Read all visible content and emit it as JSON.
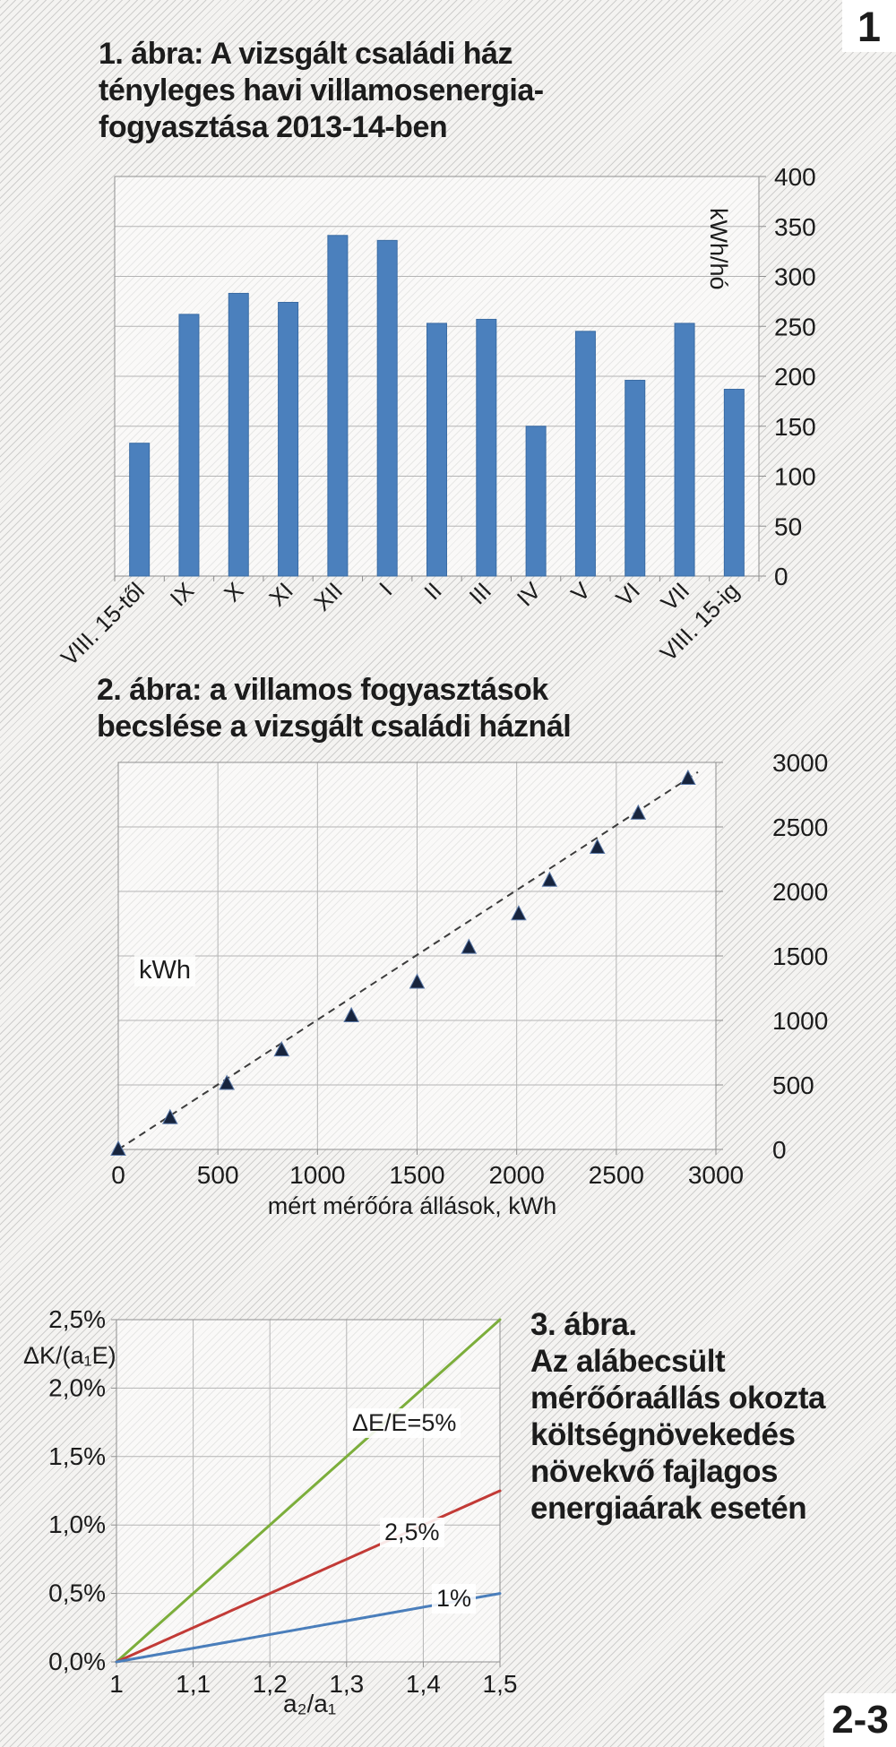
{
  "page": {
    "top_badge": "1",
    "bottom_badge": "2-3"
  },
  "chart_data": [
    {
      "type": "bar",
      "title": "1. ábra: A vizsgált családi ház tényleges havi villamosenergia-fogyasztása 2013-14-ben",
      "title_lines": [
        "1. ábra: A vizsgált családi ház",
        "tényleges havi villamosenergia-",
        "fogyasztása 2013-14-ben"
      ],
      "ylabel": "kWh/hó",
      "categories": [
        "VIII. 15-től",
        "IX",
        "X",
        "XI",
        "XII",
        "I",
        "II",
        "III",
        "IV",
        "V",
        "VI",
        "VII",
        "VIII. 15-ig"
      ],
      "values": [
        133,
        262,
        283,
        274,
        341,
        336,
        253,
        257,
        150,
        245,
        196,
        253,
        187
      ],
      "ylim": [
        0,
        400
      ],
      "ytick_step": 50,
      "bar_color": "#4b80bd",
      "axis_side": "right",
      "grid": "horizontal"
    },
    {
      "type": "scatter",
      "title": "2. ábra: a villamos fogyasztások becslése a vizsgált családi háznál",
      "title_lines": [
        "2. ábra: a villamos fogyasztások",
        "becslése a vizsgált családi háznál"
      ],
      "ylabel": "kWh",
      "xlabel": "mért mérőóra állások, kWh",
      "x": [
        0,
        260,
        545,
        820,
        1170,
        1500,
        1760,
        2010,
        2165,
        2405,
        2610,
        2860
      ],
      "y": [
        0,
        245,
        510,
        770,
        1035,
        1295,
        1565,
        1825,
        2085,
        2340,
        2605,
        2875
      ],
      "xlim": [
        0,
        3000
      ],
      "ylim": [
        0,
        3000
      ],
      "tick_step": 500,
      "marker": "triangle",
      "marker_color": "#17243d",
      "trend_line": {
        "style": "dashed",
        "x": [
          0,
          2910
        ],
        "y": [
          0,
          2925
        ]
      },
      "axis_side": "right",
      "grid": "both"
    },
    {
      "type": "line",
      "title": "3. ábra. Az alábecsült mérőóraállás okozta költségnövekedés növekvő fajlagos energiaárak esetén",
      "title_lines": [
        "3. ábra.",
        "Az alábecsült",
        "mérőóraállás okozta",
        "költségnövekedés",
        "növekvő fajlagos",
        "energiaárak esetén"
      ],
      "ylabel": "ΔK/(a₁E)",
      "xlabel": "a₂/a₁",
      "xlim": [
        1,
        1.5
      ],
      "ylim": [
        0,
        2.5
      ],
      "x_tick_labels": [
        "1",
        "1,1",
        "1,2",
        "1,3",
        "1,4",
        "1,5"
      ],
      "y_tick_labels": [
        "0,0%",
        "0,5%",
        "1,0%",
        "1,5%",
        "2,0%",
        "2,5%"
      ],
      "series": [
        {
          "label": "ΔE/E=5%",
          "color": "#7cae3b",
          "x": [
            1,
            1.5
          ],
          "y": [
            0,
            2.5
          ]
        },
        {
          "label": "2,5%",
          "color": "#c23a36",
          "x": [
            1,
            1.5
          ],
          "y": [
            0,
            1.25
          ]
        },
        {
          "label": "1%",
          "color": "#4a7ebb",
          "x": [
            1,
            1.5
          ],
          "y": [
            0,
            0.5
          ]
        }
      ],
      "grid": "both",
      "legend_position": "inline"
    }
  ]
}
